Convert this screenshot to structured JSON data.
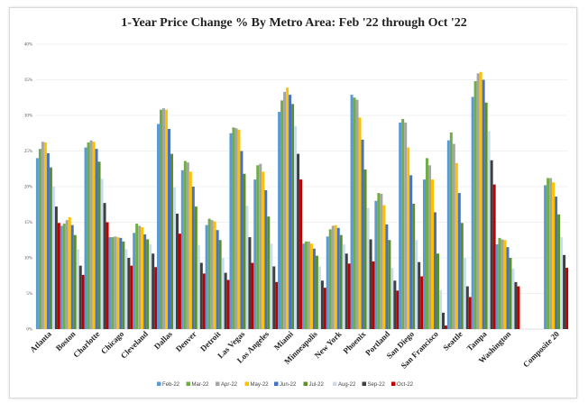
{
  "chart_data": {
    "type": "bar",
    "title": "1-Year Price Change % By Metro Area: Feb '22 through Oct '22",
    "xlabel": "",
    "ylabel": "",
    "ylim": [
      0,
      40
    ],
    "y_ticks": [
      "0%",
      "5%",
      "10%",
      "15%",
      "20%",
      "25%",
      "30%",
      "35%",
      "40%"
    ],
    "grid": true,
    "legend": "bottom",
    "categories": [
      "Atlanta",
      "Boston",
      "Charlotte",
      "Chicago",
      "Cleveland",
      "Dallas",
      "Denver",
      "Detroit",
      "Las Vegas",
      "Los Angeles",
      "Miami",
      "Minneapolis",
      "New York",
      "Phoenix",
      "Portland",
      "San Diego",
      "San Francisco",
      "Seattle",
      "Tampa",
      "Washington",
      "",
      "Composite 20"
    ],
    "series": [
      {
        "name": "Feb-22",
        "color": "#5b9bd5",
        "values": [
          24.0,
          14.5,
          25.5,
          12.9,
          13.5,
          28.8,
          22.3,
          14.6,
          27.5,
          21.0,
          30.5,
          12.0,
          13.0,
          32.9,
          18.0,
          29.0,
          21.0,
          26.5,
          32.6,
          11.9,
          null,
          20.2
        ]
      },
      {
        "name": "Mar-22",
        "color": "#70ad47",
        "values": [
          25.3,
          14.8,
          26.2,
          12.9,
          14.8,
          30.8,
          23.6,
          15.5,
          28.3,
          23.0,
          32.1,
          12.3,
          14.0,
          32.5,
          19.1,
          29.5,
          24.0,
          27.6,
          34.8,
          12.8,
          null,
          21.2
        ]
      },
      {
        "name": "Apr-22",
        "color": "#a5a5a5",
        "values": [
          26.3,
          15.3,
          26.5,
          13.0,
          14.5,
          31.0,
          23.4,
          15.3,
          28.2,
          23.2,
          33.3,
          12.3,
          14.5,
          32.2,
          19.0,
          29.0,
          23.0,
          26.0,
          35.9,
          12.6,
          null,
          21.2
        ]
      },
      {
        "name": "May-22",
        "color": "#ffc000",
        "values": [
          26.2,
          15.7,
          26.3,
          12.9,
          14.3,
          30.8,
          22.1,
          15.1,
          28.0,
          22.1,
          33.9,
          12.0,
          14.6,
          29.7,
          17.4,
          25.5,
          21.0,
          23.3,
          36.1,
          12.5,
          null,
          20.6
        ]
      },
      {
        "name": "Jun-22",
        "color": "#4472c4",
        "values": [
          24.7,
          14.6,
          25.3,
          12.8,
          13.3,
          28.1,
          20.0,
          13.9,
          25.0,
          19.5,
          32.9,
          11.3,
          14.2,
          26.6,
          14.7,
          21.6,
          16.4,
          19.1,
          35.0,
          11.5,
          null,
          18.6
        ]
      },
      {
        "name": "Jul-22",
        "color": "#5b8f2c",
        "values": [
          22.7,
          13.2,
          23.5,
          12.3,
          12.6,
          24.6,
          17.2,
          12.5,
          21.8,
          15.8,
          31.6,
          10.3,
          13.2,
          22.4,
          12.5,
          17.6,
          10.6,
          14.9,
          31.8,
          10.0,
          null,
          16.1
        ]
      },
      {
        "name": "Aug-22",
        "color": "#cbdcf1",
        "values": [
          20.0,
          11.2,
          21.1,
          11.2,
          11.9,
          19.9,
          11.8,
          10.0,
          17.3,
          12.0,
          28.5,
          8.8,
          11.9,
          17.0,
          8.6,
          12.5,
          5.5,
          10.0,
          27.8,
          8.5,
          null,
          12.9
        ]
      },
      {
        "name": "Sep-22",
        "color": "#404040",
        "values": [
          17.2,
          8.9,
          17.7,
          10.0,
          10.6,
          16.2,
          9.3,
          7.9,
          12.9,
          8.8,
          24.6,
          6.8,
          10.6,
          12.6,
          6.8,
          9.4,
          2.3,
          6.0,
          23.7,
          6.6,
          null,
          10.4
        ]
      },
      {
        "name": "Oct-22",
        "color": "#c00000",
        "values": [
          14.9,
          7.6,
          15.0,
          8.9,
          8.7,
          13.4,
          7.8,
          6.9,
          9.3,
          6.6,
          21.0,
          5.8,
          9.2,
          9.5,
          5.4,
          7.4,
          0.5,
          4.5,
          20.3,
          6.0,
          null,
          8.6
        ]
      }
    ]
  }
}
